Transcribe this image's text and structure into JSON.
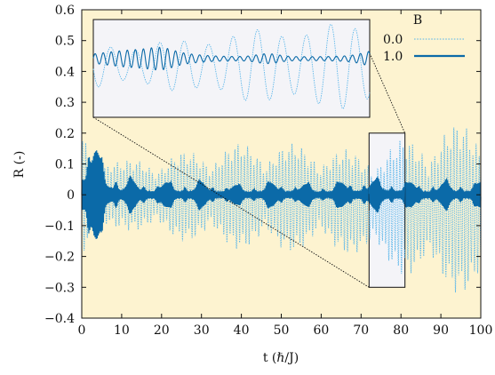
{
  "chart_data": {
    "type": "line",
    "xlabel": "t (ℏ/J)",
    "ylabel": "R (-)",
    "xlim": [
      0,
      100
    ],
    "ylim": [
      -0.4,
      0.6
    ],
    "x_ticks": [
      "0",
      "10",
      "20",
      "30",
      "40",
      "50",
      "60",
      "70",
      "80",
      "90",
      "100"
    ],
    "y_ticks": [
      "−0.4",
      "−0.3",
      "−0.2",
      "−0.1",
      "0",
      "0.1",
      "0.2",
      "0.3",
      "0.4",
      "0.5",
      "0.6"
    ],
    "grid": false,
    "legend_title": "B",
    "legend_position": "top-right",
    "series": [
      {
        "name": "0.0",
        "style": "dotted",
        "color": "#56b4e9",
        "envelope_t": [
          0,
          10,
          20,
          30,
          40,
          50,
          60,
          70,
          80,
          90,
          100
        ],
        "envelope_upper": [
          0.2,
          0.11,
          0.13,
          0.15,
          0.17,
          0.17,
          0.16,
          0.14,
          0.18,
          0.22,
          0.25
        ],
        "envelope_lower": [
          -0.2,
          -0.11,
          -0.14,
          -0.16,
          -0.18,
          -0.19,
          -0.18,
          -0.2,
          -0.26,
          -0.3,
          -0.35
        ]
      },
      {
        "name": "1.0",
        "style": "solid",
        "color": "#0b6aa8",
        "envelope_t": [
          0,
          10,
          20,
          30,
          40,
          50,
          60,
          70,
          80,
          90,
          100
        ],
        "envelope_upper": [
          0.2,
          0.05,
          0.04,
          0.04,
          0.03,
          0.04,
          0.03,
          0.05,
          0.04,
          0.04,
          0.04
        ],
        "envelope_lower": [
          -0.2,
          -0.05,
          -0.04,
          -0.04,
          -0.03,
          -0.04,
          -0.03,
          -0.05,
          -0.04,
          -0.04,
          -0.04
        ]
      }
    ],
    "inset": {
      "xlim": [
        72,
        81
      ],
      "ylim": [
        -0.3,
        0.2
      ],
      "location": "top-left"
    },
    "background_color": "#fdf3d0",
    "inset_background_color": "#f4f4f8"
  }
}
